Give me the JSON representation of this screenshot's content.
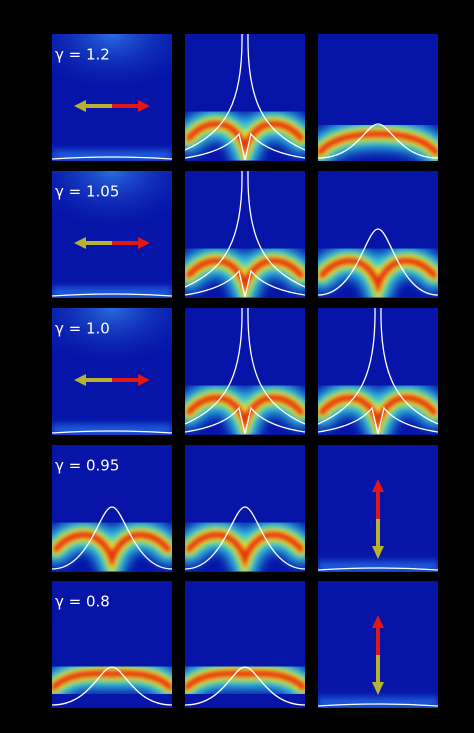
{
  "rows": [
    {
      "label": "γ = 1.2"
    },
    {
      "label": "γ = 1.05"
    },
    {
      "label": "γ = 1.0"
    },
    {
      "label": "γ = 0.95"
    },
    {
      "label": "γ = 0.8"
    }
  ]
}
